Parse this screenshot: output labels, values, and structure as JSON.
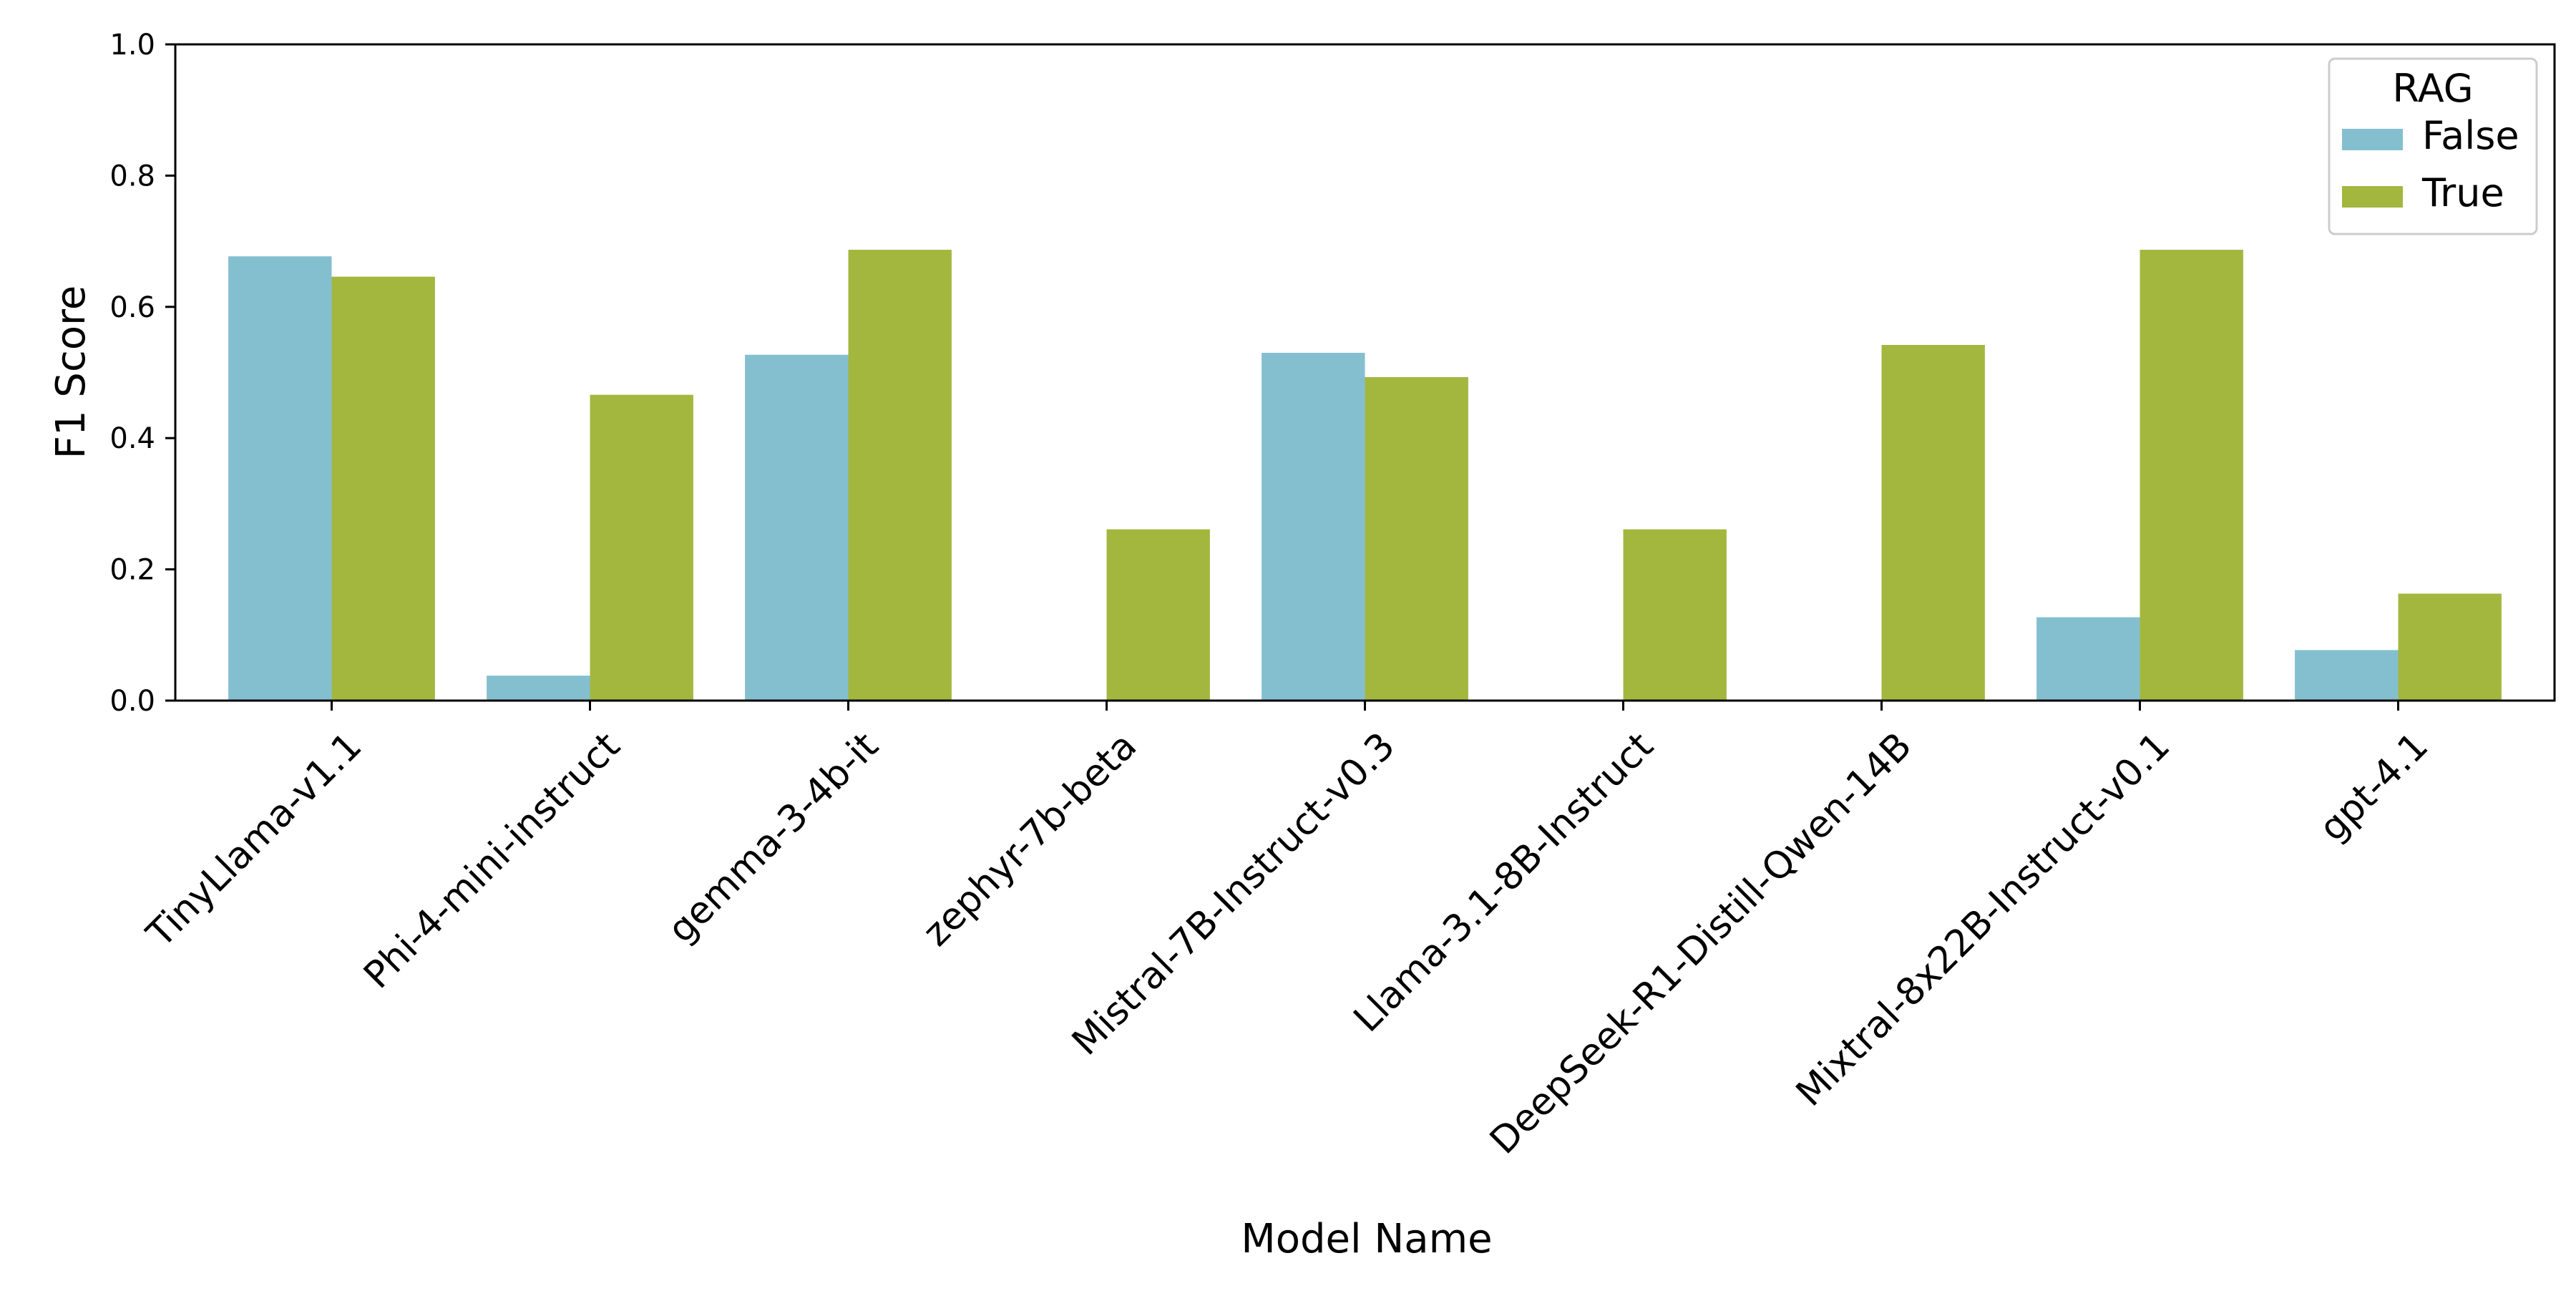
{
  "chart_data": {
    "type": "bar",
    "title": "",
    "xlabel": "Model Name",
    "ylabel": "F1 Score",
    "ylim": [
      0,
      1.0
    ],
    "yticks": [
      "0.0",
      "0.2",
      "0.4",
      "0.6",
      "0.8",
      "1.0"
    ],
    "grid": false,
    "legend_position": "top-right",
    "legend_title": "RAG",
    "categories": [
      "TinyLlama-v1.1",
      "Phi-4-mini-instruct",
      "gemma-3-4b-it",
      "zephyr-7b-beta",
      "Mistral-7B-Instruct-v0.3",
      "Llama-3.1-8B-Instruct",
      "DeepSeek-R1-Distill-Qwen-14B",
      "Mixtral-8x22B-Instruct-v0.1",
      "gpt-4.1"
    ],
    "series": [
      {
        "name": "False",
        "color": "#84bfcf",
        "values": [
          0.677,
          0.038,
          0.527,
          0.0,
          0.53,
          0.0,
          0.0,
          0.127,
          0.077
        ]
      },
      {
        "name": "True",
        "color": "#a3b73f",
        "values": [
          0.646,
          0.466,
          0.687,
          0.261,
          0.493,
          0.261,
          0.542,
          0.687,
          0.163
        ]
      }
    ]
  }
}
